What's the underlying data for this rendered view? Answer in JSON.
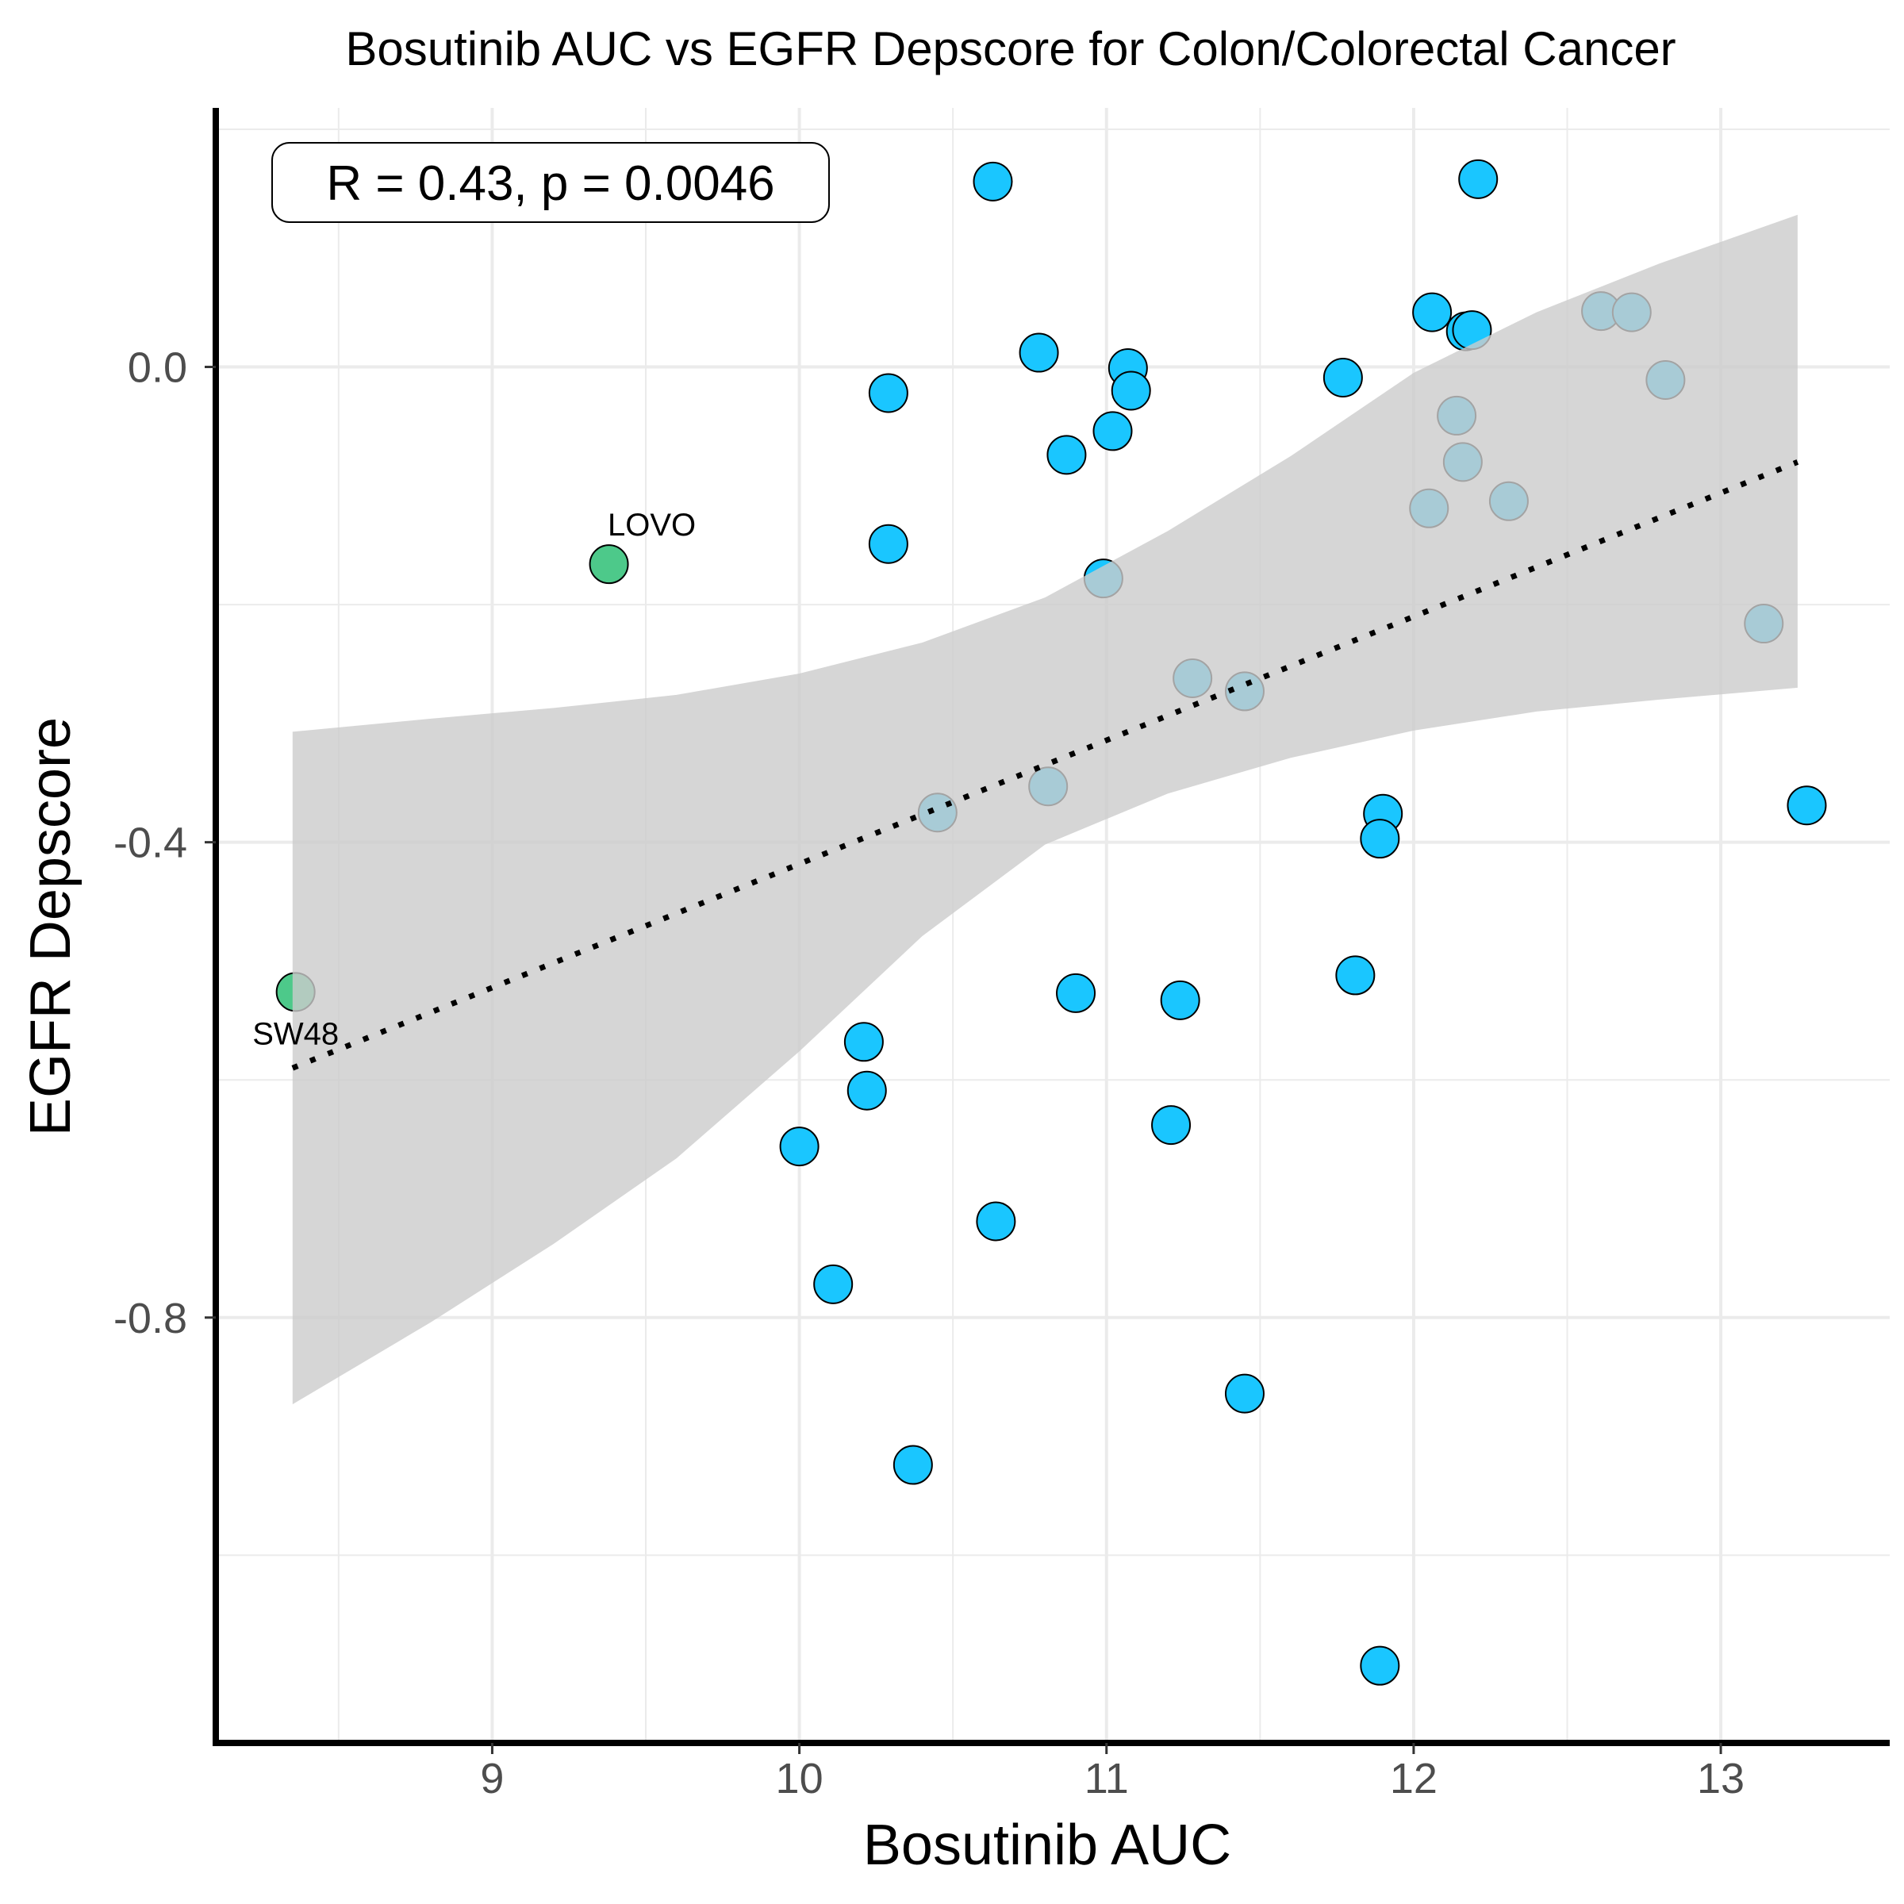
{
  "chart_data": {
    "type": "scatter",
    "title": "Bosutinib AUC vs EGFR Depscore for Colon/Colorectal Cancer",
    "xlabel": "Bosutinib AUC",
    "ylabel": "EGFR Depscore",
    "xlim": [
      8.1,
      13.55
    ],
    "ylim": [
      -1.158,
      0.218
    ],
    "x_ticks": [
      9,
      10,
      11,
      12,
      13
    ],
    "x_tick_labels": [
      "9",
      "10",
      "11",
      "12",
      "13"
    ],
    "y_ticks": [
      0.0,
      -0.4,
      -0.8
    ],
    "y_tick_labels": [
      "0.0",
      "-0.4",
      "-0.8"
    ],
    "grid": true,
    "annotation": "R = 0.43, p = 0.0046",
    "colors": {
      "point": "#1ac6ff",
      "highlight": "#4dc98a",
      "band": "#cccccc",
      "trend": "#000000",
      "grid": "#ebebeb"
    },
    "trend_line": {
      "x": [
        8.35,
        13.25
      ],
      "y": [
        -0.59,
        -0.08
      ]
    },
    "confidence_band": {
      "x": [
        8.35,
        8.8,
        9.2,
        9.6,
        10.0,
        10.4,
        10.8,
        11.2,
        11.6,
        12.0,
        12.4,
        12.8,
        13.25
      ],
      "upper": [
        -0.307,
        -0.296,
        -0.287,
        -0.276,
        -0.258,
        -0.232,
        -0.194,
        -0.138,
        -0.075,
        -0.005,
        0.046,
        0.087,
        0.128
      ],
      "lower": [
        -0.873,
        -0.804,
        -0.738,
        -0.666,
        -0.576,
        -0.479,
        -0.402,
        -0.359,
        -0.329,
        -0.306,
        -0.29,
        -0.28,
        -0.27
      ]
    },
    "points": [
      {
        "x": 10.63,
        "y": 0.156
      },
      {
        "x": 12.21,
        "y": 0.158
      },
      {
        "x": 12.06,
        "y": 0.046
      },
      {
        "x": 12.61,
        "y": 0.047
      },
      {
        "x": 12.71,
        "y": 0.046
      },
      {
        "x": 12.17,
        "y": 0.03
      },
      {
        "x": 12.19,
        "y": 0.031
      },
      {
        "x": 10.78,
        "y": 0.012
      },
      {
        "x": 11.07,
        "y": -0.001
      },
      {
        "x": 11.08,
        "y": -0.02
      },
      {
        "x": 10.29,
        "y": -0.022
      },
      {
        "x": 11.77,
        "y": -0.009
      },
      {
        "x": 12.82,
        "y": -0.011
      },
      {
        "x": 12.14,
        "y": -0.041
      },
      {
        "x": 11.02,
        "y": -0.054
      },
      {
        "x": 10.87,
        "y": -0.074
      },
      {
        "x": 12.16,
        "y": -0.08
      },
      {
        "x": 12.31,
        "y": -0.113
      },
      {
        "x": 12.05,
        "y": -0.119
      },
      {
        "x": 10.29,
        "y": -0.149
      },
      {
        "x": 10.99,
        "y": -0.178
      },
      {
        "x": 9.38,
        "y": -0.166,
        "label": "LOVO"
      },
      {
        "x": 13.14,
        "y": -0.216
      },
      {
        "x": 11.28,
        "y": -0.262
      },
      {
        "x": 11.45,
        "y": -0.273
      },
      {
        "x": 10.81,
        "y": -0.353
      },
      {
        "x": 10.45,
        "y": -0.375
      },
      {
        "x": 11.9,
        "y": -0.376
      },
      {
        "x": 13.28,
        "y": -0.369
      },
      {
        "x": 11.89,
        "y": -0.397
      },
      {
        "x": 8.36,
        "y": -0.526,
        "label": "SW48"
      },
      {
        "x": 11.81,
        "y": -0.512
      },
      {
        "x": 10.9,
        "y": -0.527
      },
      {
        "x": 11.24,
        "y": -0.533
      },
      {
        "x": 10.21,
        "y": -0.568
      },
      {
        "x": 10.22,
        "y": -0.609
      },
      {
        "x": 11.21,
        "y": -0.638
      },
      {
        "x": 10.0,
        "y": -0.656
      },
      {
        "x": 10.64,
        "y": -0.719
      },
      {
        "x": 10.11,
        "y": -0.772
      },
      {
        "x": 11.45,
        "y": -0.864
      },
      {
        "x": 10.37,
        "y": -0.924
      },
      {
        "x": 11.89,
        "y": -1.093
      }
    ]
  }
}
